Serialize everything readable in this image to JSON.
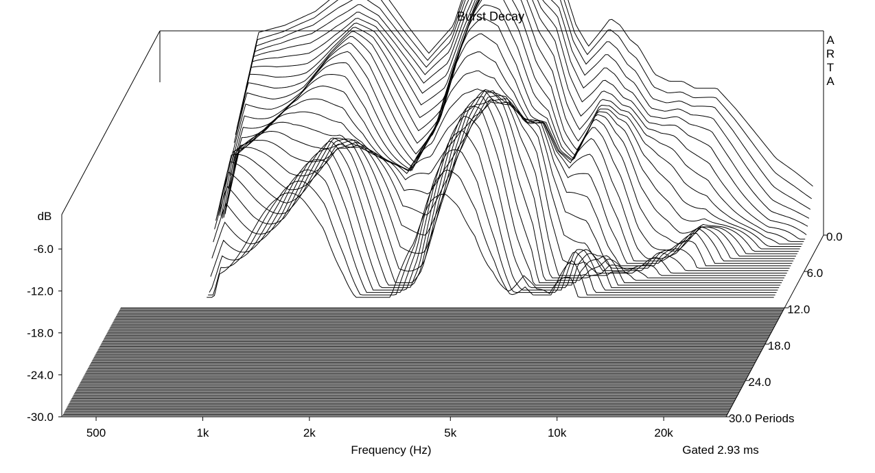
{
  "chart_data": {
    "type": "waterfall-3d",
    "title": "Burst Decay",
    "watermark": "ARTA",
    "xlabel": "Frequency (Hz)",
    "ylabel": "dB",
    "zlabel": "Periods",
    "gated_note": "Gated 2.93 ms",
    "x_scale": "log",
    "xlim": [
      400,
      30000
    ],
    "x_ticks": [
      {
        "value": 500,
        "label": "500"
      },
      {
        "value": 1000,
        "label": "1k"
      },
      {
        "value": 2000,
        "label": "2k"
      },
      {
        "value": 5000,
        "label": "5k"
      },
      {
        "value": 10000,
        "label": "10k"
      },
      {
        "value": 20000,
        "label": "20k"
      }
    ],
    "ylim": [
      -30,
      0
    ],
    "y_ticks": [
      "-6.0",
      "-12.0",
      "-18.0",
      "-24.0",
      "-30.0"
    ],
    "y_tick_values": [
      -6,
      -12,
      -18,
      -24,
      -30
    ],
    "zlim": [
      0,
      30
    ],
    "z_ticks": [
      "0.0",
      "6.0",
      "12.0",
      "18.0",
      "24.0",
      "30.0 Periods"
    ],
    "z_tick_values": [
      0,
      6,
      12,
      18,
      24,
      30
    ],
    "slices_count": 30,
    "initial_response": {
      "freq_hz": [
        700,
        760,
        900,
        1100,
        1300,
        1500,
        1700,
        2000,
        2300,
        2700,
        3000,
        3300,
        3600,
        4000,
        4500,
        5000,
        5500,
        6000,
        6500,
        7000,
        7500,
        8000,
        8500,
        9000,
        10000,
        11000,
        12000,
        13000,
        15000,
        17000,
        19000,
        22000,
        25000,
        28000
      ],
      "level_db": [
        -9,
        -1,
        0,
        2,
        5,
        7,
        5,
        0,
        -4,
        0,
        7,
        12,
        15,
        16,
        13,
        8,
        6,
        0,
        -3,
        -1,
        1,
        0,
        -2,
        -3,
        -7,
        -8,
        -8,
        -9,
        -9,
        -12,
        -15,
        -19,
        -21,
        -23
      ]
    },
    "floor_db": -30,
    "grid": false
  }
}
